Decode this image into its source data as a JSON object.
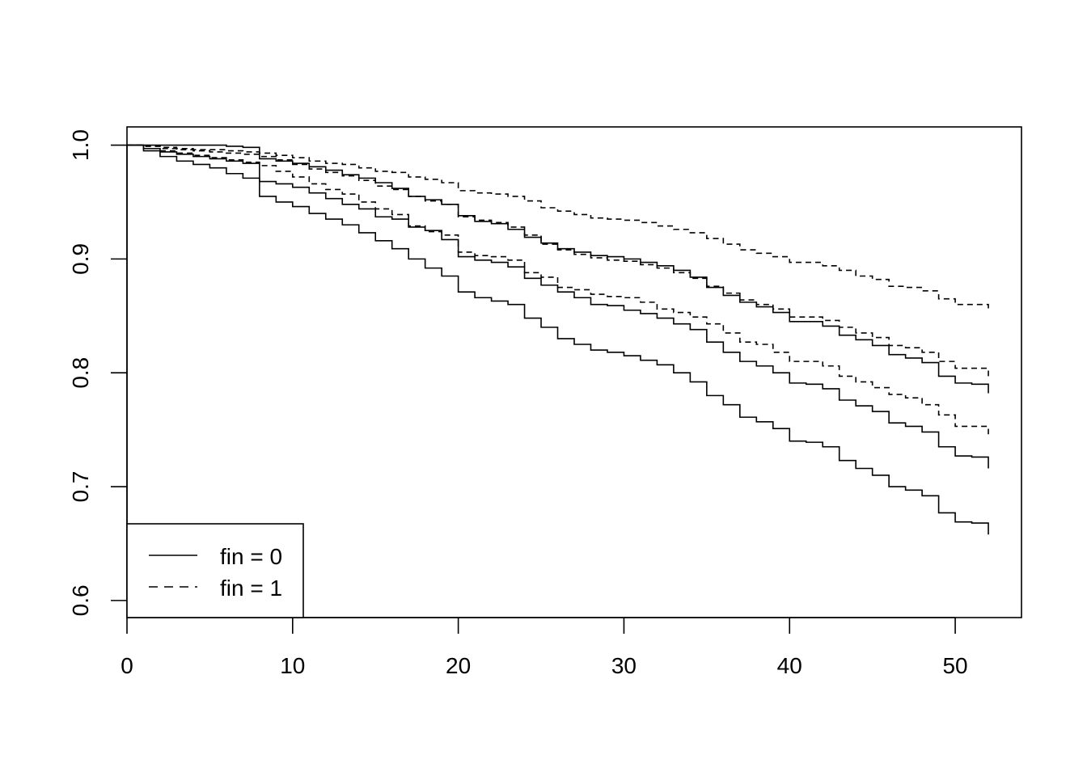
{
  "chart_data": {
    "type": "line",
    "step": true,
    "title": "",
    "xlabel": "",
    "ylabel": "",
    "xlim": [
      0,
      54
    ],
    "ylim": [
      0.585,
      1.016
    ],
    "x_ticks": [
      0,
      10,
      20,
      30,
      40,
      50
    ],
    "y_ticks": [
      0.6,
      0.7,
      0.8,
      0.9,
      1.0
    ],
    "x_tick_labels": [
      "0",
      "10",
      "20",
      "30",
      "40",
      "50"
    ],
    "y_tick_labels": [
      "0.6",
      "0.7",
      "0.8",
      "0.9",
      "1.0"
    ],
    "grid": false,
    "legend": {
      "position": "bottom-left",
      "entries": [
        {
          "label": "fin = 0",
          "dash": "solid"
        },
        {
          "label": "fin = 1",
          "dash": "dashed"
        }
      ]
    },
    "series": [
      {
        "legend": "fin = 0",
        "dash": "solid",
        "x": [
          0,
          1,
          2,
          3,
          4,
          5,
          6,
          7,
          8,
          9,
          10,
          11,
          12,
          13,
          14,
          15,
          16,
          17,
          18,
          19,
          20,
          21,
          22,
          23,
          24,
          25,
          26,
          27,
          28,
          29,
          30,
          31,
          32,
          33,
          34,
          35,
          36,
          37,
          38,
          39,
          40,
          41,
          42,
          43,
          44,
          45,
          46,
          47,
          48,
          49,
          50,
          51,
          52
        ],
        "y": [
          1.0,
          0.995,
          0.99,
          0.986,
          0.983,
          0.98,
          0.975,
          0.971,
          0.955,
          0.95,
          0.946,
          0.94,
          0.935,
          0.93,
          0.923,
          0.916,
          0.909,
          0.9,
          0.892,
          0.885,
          0.871,
          0.866,
          0.863,
          0.86,
          0.848,
          0.84,
          0.83,
          0.825,
          0.82,
          0.818,
          0.815,
          0.811,
          0.807,
          0.8,
          0.792,
          0.78,
          0.772,
          0.761,
          0.757,
          0.751,
          0.74,
          0.739,
          0.735,
          0.723,
          0.716,
          0.71,
          0.7,
          0.697,
          0.692,
          0.677,
          0.669,
          0.668,
          0.658
        ]
      },
      {
        "legend": "fin = 0",
        "dash": "solid",
        "x": [
          0,
          1,
          2,
          3,
          4,
          5,
          6,
          7,
          8,
          9,
          10,
          11,
          12,
          13,
          14,
          15,
          16,
          17,
          18,
          19,
          20,
          21,
          22,
          23,
          24,
          25,
          26,
          27,
          28,
          29,
          30,
          31,
          32,
          33,
          34,
          35,
          36,
          37,
          38,
          39,
          40,
          41,
          42,
          43,
          44,
          45,
          46,
          47,
          48,
          49,
          50,
          51,
          52
        ],
        "y": [
          1.0,
          0.997,
          0.994,
          0.992,
          0.99,
          0.988,
          0.986,
          0.984,
          0.968,
          0.966,
          0.963,
          0.958,
          0.953,
          0.948,
          0.944,
          0.937,
          0.935,
          0.928,
          0.925,
          0.917,
          0.902,
          0.899,
          0.897,
          0.893,
          0.883,
          0.877,
          0.871,
          0.866,
          0.86,
          0.859,
          0.855,
          0.852,
          0.848,
          0.843,
          0.838,
          0.827,
          0.818,
          0.81,
          0.806,
          0.8,
          0.791,
          0.79,
          0.786,
          0.776,
          0.771,
          0.766,
          0.756,
          0.753,
          0.748,
          0.735,
          0.727,
          0.726,
          0.716
        ]
      },
      {
        "legend": "fin = 0",
        "dash": "solid",
        "x": [
          0,
          1,
          2,
          3,
          4,
          5,
          6,
          7,
          8,
          9,
          10,
          11,
          12,
          13,
          14,
          15,
          16,
          17,
          18,
          19,
          20,
          21,
          22,
          23,
          24,
          25,
          26,
          27,
          28,
          29,
          30,
          31,
          32,
          33,
          34,
          35,
          36,
          37,
          38,
          39,
          40,
          41,
          42,
          43,
          44,
          45,
          46,
          47,
          48,
          49,
          50,
          51,
          52
        ],
        "y": [
          1.0,
          1.0,
          1.0,
          1.0,
          1.0,
          1.0,
          0.999,
          0.998,
          0.988,
          0.986,
          0.984,
          0.981,
          0.978,
          0.974,
          0.971,
          0.967,
          0.962,
          0.955,
          0.952,
          0.948,
          0.938,
          0.933,
          0.931,
          0.926,
          0.919,
          0.914,
          0.909,
          0.906,
          0.903,
          0.902,
          0.9,
          0.897,
          0.894,
          0.89,
          0.884,
          0.875,
          0.868,
          0.862,
          0.858,
          0.853,
          0.845,
          0.845,
          0.841,
          0.833,
          0.829,
          0.824,
          0.816,
          0.813,
          0.809,
          0.797,
          0.791,
          0.79,
          0.782
        ]
      },
      {
        "legend": "fin = 1",
        "dash": "dashed",
        "x": [
          0,
          1,
          2,
          3,
          4,
          5,
          6,
          7,
          8,
          9,
          10,
          11,
          12,
          13,
          14,
          15,
          16,
          17,
          18,
          19,
          20,
          21,
          22,
          23,
          24,
          25,
          26,
          27,
          28,
          29,
          30,
          31,
          32,
          33,
          34,
          35,
          36,
          37,
          38,
          39,
          40,
          41,
          42,
          43,
          44,
          45,
          46,
          47,
          48,
          49,
          50,
          51,
          52
        ],
        "y": [
          1.0,
          0.999,
          0.998,
          0.997,
          0.996,
          0.996,
          0.995,
          0.994,
          0.993,
          0.991,
          0.989,
          0.986,
          0.984,
          0.983,
          0.98,
          0.977,
          0.976,
          0.972,
          0.97,
          0.967,
          0.96,
          0.958,
          0.957,
          0.955,
          0.951,
          0.945,
          0.942,
          0.939,
          0.936,
          0.935,
          0.934,
          0.932,
          0.929,
          0.926,
          0.923,
          0.918,
          0.913,
          0.908,
          0.905,
          0.902,
          0.897,
          0.897,
          0.894,
          0.89,
          0.885,
          0.882,
          0.876,
          0.875,
          0.872,
          0.865,
          0.86,
          0.86,
          0.855
        ]
      },
      {
        "legend": "fin = 1",
        "dash": "dashed",
        "x": [
          0,
          1,
          2,
          3,
          4,
          5,
          6,
          7,
          8,
          9,
          10,
          11,
          12,
          13,
          14,
          15,
          16,
          17,
          18,
          19,
          20,
          21,
          22,
          23,
          24,
          25,
          26,
          27,
          28,
          29,
          30,
          31,
          32,
          33,
          34,
          35,
          36,
          37,
          38,
          39,
          40,
          41,
          42,
          43,
          44,
          45,
          46,
          47,
          48,
          49,
          50,
          51,
          52
        ],
        "y": [
          1.0,
          0.999,
          0.997,
          0.996,
          0.995,
          0.994,
          0.993,
          0.992,
          0.99,
          0.987,
          0.983,
          0.979,
          0.976,
          0.973,
          0.969,
          0.964,
          0.961,
          0.955,
          0.951,
          0.948,
          0.937,
          0.934,
          0.932,
          0.928,
          0.921,
          0.913,
          0.908,
          0.904,
          0.901,
          0.899,
          0.898,
          0.895,
          0.892,
          0.888,
          0.883,
          0.876,
          0.87,
          0.864,
          0.86,
          0.856,
          0.849,
          0.849,
          0.846,
          0.84,
          0.835,
          0.831,
          0.824,
          0.822,
          0.818,
          0.81,
          0.804,
          0.804,
          0.797
        ]
      },
      {
        "legend": "fin = 1",
        "dash": "dashed",
        "x": [
          0,
          1,
          2,
          3,
          4,
          5,
          6,
          7,
          8,
          9,
          10,
          11,
          12,
          13,
          14,
          15,
          16,
          17,
          18,
          19,
          20,
          21,
          22,
          23,
          24,
          25,
          26,
          27,
          28,
          29,
          30,
          31,
          32,
          33,
          34,
          35,
          36,
          37,
          38,
          39,
          40,
          41,
          42,
          43,
          44,
          45,
          46,
          47,
          48,
          49,
          50,
          51,
          52
        ],
        "y": [
          1.0,
          0.997,
          0.995,
          0.993,
          0.991,
          0.989,
          0.987,
          0.985,
          0.982,
          0.977,
          0.972,
          0.966,
          0.961,
          0.957,
          0.95,
          0.944,
          0.939,
          0.929,
          0.924,
          0.921,
          0.906,
          0.903,
          0.902,
          0.899,
          0.888,
          0.884,
          0.875,
          0.873,
          0.869,
          0.867,
          0.866,
          0.862,
          0.856,
          0.853,
          0.849,
          0.843,
          0.835,
          0.827,
          0.825,
          0.818,
          0.81,
          0.81,
          0.806,
          0.797,
          0.792,
          0.787,
          0.781,
          0.778,
          0.772,
          0.763,
          0.753,
          0.753,
          0.746
        ]
      }
    ]
  }
}
